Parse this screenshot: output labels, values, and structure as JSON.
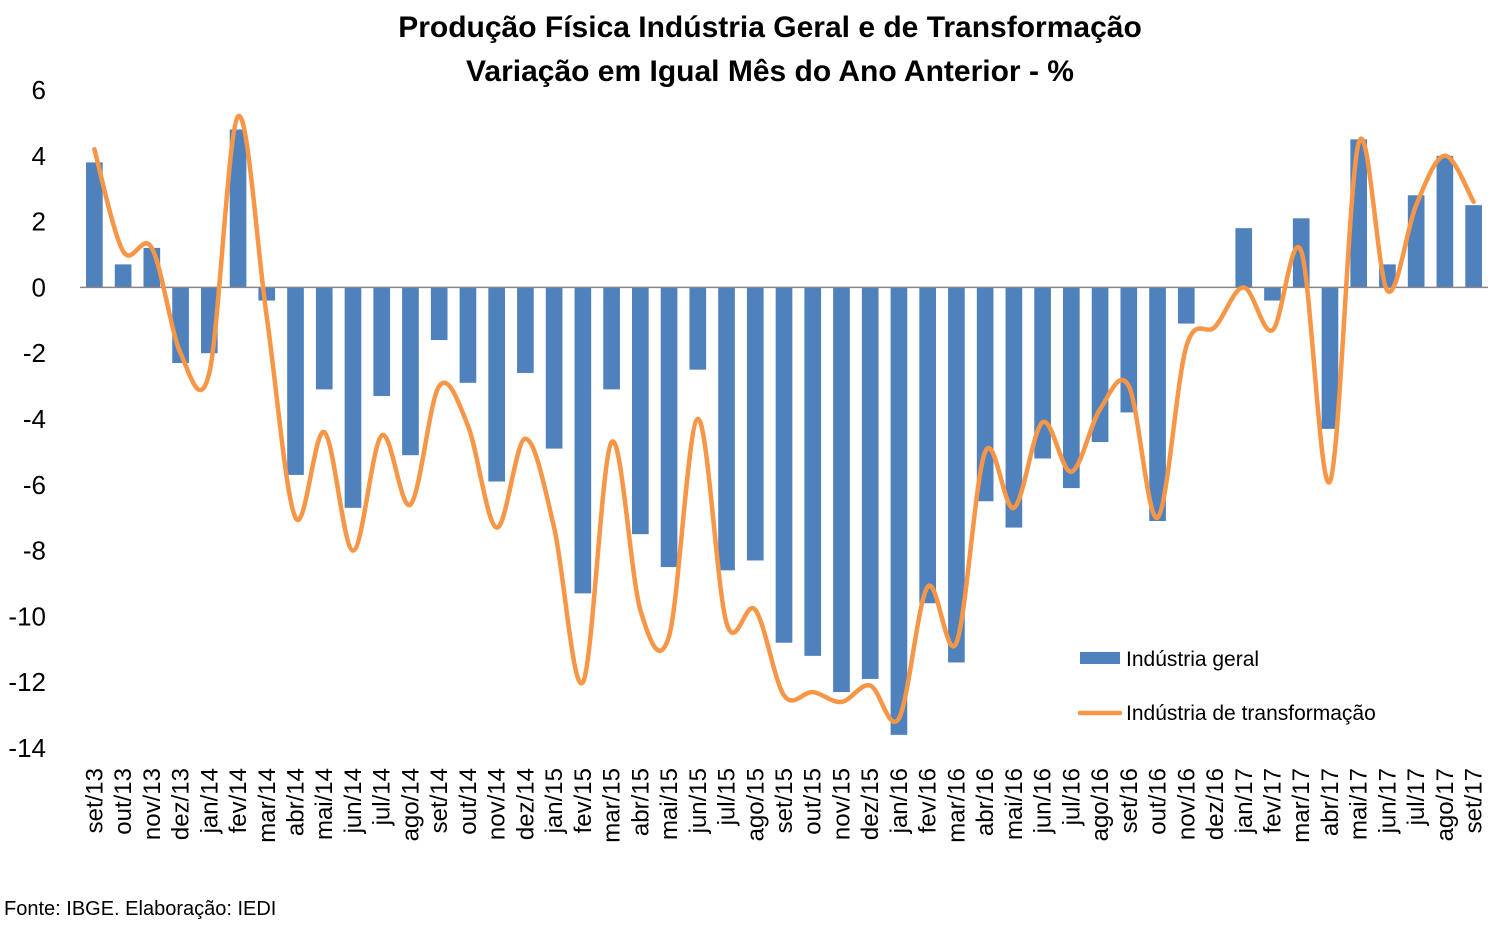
{
  "chart_data": {
    "type": "bar",
    "title": "Produção Física Indústria Geral e de Transformação",
    "subtitle": "Variação em Igual Mês do Ano Anterior - %",
    "xlabel": "",
    "ylabel": "",
    "ylim": [
      -14,
      6
    ],
    "yticks": [
      "6",
      "4",
      "2",
      "0",
      "-2",
      "-4",
      "-6",
      "-8",
      "-10",
      "-12",
      "-14"
    ],
    "ytick_values": [
      6,
      4,
      2,
      0,
      -2,
      -4,
      -6,
      -8,
      -10,
      -12,
      -14
    ],
    "grid": false,
    "legend_position": "bottom-right",
    "categories": [
      "set/13",
      "out/13",
      "nov/13",
      "dez/13",
      "jan/14",
      "fev/14",
      "mar/14",
      "abr/14",
      "mai/14",
      "jun/14",
      "jul/14",
      "ago/14",
      "set/14",
      "out/14",
      "nov/14",
      "dez/14",
      "jan/15",
      "fev/15",
      "mar/15",
      "abr/15",
      "mai/15",
      "jun/15",
      "jul/15",
      "ago/15",
      "set/15",
      "out/15",
      "nov/15",
      "dez/15",
      "jan/16",
      "fev/16",
      "mar/16",
      "abr/16",
      "mai/16",
      "jun/16",
      "jul/16",
      "ago/16",
      "set/16",
      "out/16",
      "nov/16",
      "dez/16",
      "jan/17",
      "fev/17",
      "mar/17",
      "abr/17",
      "mai/17",
      "jun/17",
      "jul/17",
      "ago/17",
      "set/17"
    ],
    "series": [
      {
        "name": "Indústria geral",
        "type": "bar",
        "color": "#4f81bd",
        "values": [
          3.8,
          0.7,
          1.2,
          -2.3,
          -2.0,
          4.8,
          -0.4,
          -5.7,
          -3.1,
          -6.7,
          -3.3,
          -5.1,
          -1.6,
          -2.9,
          -5.9,
          -2.6,
          -4.9,
          -9.3,
          -3.1,
          -7.5,
          -8.5,
          -2.5,
          -8.6,
          -8.3,
          -10.8,
          -11.2,
          -12.3,
          -11.9,
          -13.6,
          -9.6,
          -11.4,
          -6.5,
          -7.3,
          -5.2,
          -6.1,
          -4.7,
          -3.8,
          -7.1,
          -1.1,
          0.0,
          1.8,
          -0.4,
          2.1,
          -4.3,
          4.5,
          0.7,
          2.8,
          4.0,
          2.5
        ]
      },
      {
        "name": "Indústria de transformação",
        "type": "line",
        "color": "#f79646",
        "values": [
          4.2,
          1.1,
          1.2,
          -2.0,
          -2.6,
          5.2,
          -0.9,
          -7.0,
          -4.4,
          -8.0,
          -4.5,
          -6.6,
          -3.0,
          -4.2,
          -7.3,
          -4.6,
          -7.3,
          -12.0,
          -4.7,
          -9.8,
          -10.6,
          -4.0,
          -10.2,
          -9.8,
          -12.4,
          -12.3,
          -12.6,
          -12.1,
          -13.1,
          -9.1,
          -10.8,
          -5.0,
          -6.7,
          -4.1,
          -5.6,
          -3.7,
          -3.0,
          -7.0,
          -1.8,
          -1.2,
          0.0,
          -1.3,
          1.1,
          -5.9,
          4.4,
          -0.1,
          2.5,
          4.0,
          2.6
        ]
      }
    ]
  },
  "source_note": "Fonte: IBGE. Elaboração: IEDI"
}
